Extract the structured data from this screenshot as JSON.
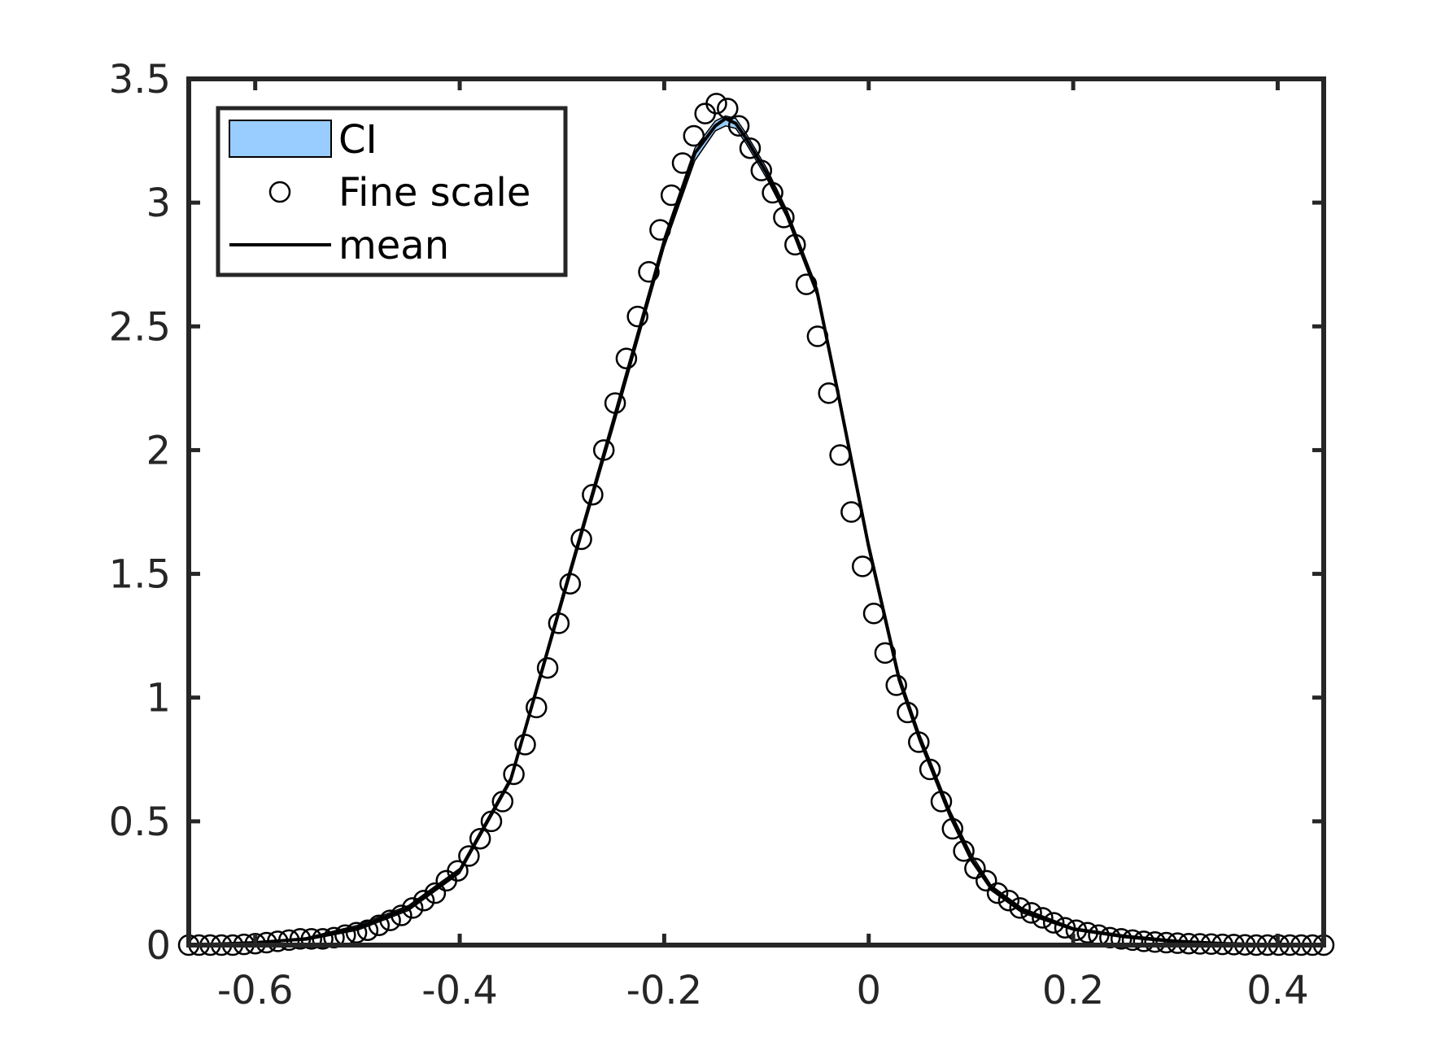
{
  "chart_data": {
    "type": "line",
    "title": "",
    "xlabel": "",
    "ylabel": "",
    "xlim": [
      -0.665,
      0.445
    ],
    "ylim": [
      0,
      3.5
    ],
    "xticks": [
      -0.6,
      -0.4,
      -0.2,
      0,
      0.2,
      0.4
    ],
    "xtick_labels": [
      "-0.6",
      "-0.4",
      "-0.2",
      "0",
      "0.2",
      "0.4"
    ],
    "yticks": [
      0,
      0.5,
      1,
      1.5,
      2,
      2.5,
      3,
      3.5
    ],
    "ytick_labels": [
      "0",
      "0.5",
      "1",
      "1.5",
      "2",
      "2.5",
      "3",
      "3.5"
    ],
    "grid": false,
    "legend": {
      "placement": "top-left",
      "entries": [
        "CI",
        "Fine scale",
        "mean"
      ]
    },
    "colors": {
      "ci_fill": "#99ccff",
      "mean_line": "#000000",
      "markers": "#000000",
      "axes": "#262626"
    },
    "series": [
      {
        "name": "CI",
        "kind": "band",
        "x": [
          -0.665,
          -0.6,
          -0.55,
          -0.5,
          -0.45,
          -0.4,
          -0.35,
          -0.3,
          -0.25,
          -0.2,
          -0.17,
          -0.15,
          -0.14,
          -0.13,
          -0.12,
          -0.1,
          -0.08,
          -0.05,
          -0.03,
          0,
          0.03,
          0.05,
          0.08,
          0.1,
          0.12,
          0.15,
          0.2,
          0.25,
          0.3,
          0.35,
          0.4,
          0.445
        ],
        "lower": [
          0.0,
          0.01,
          0.02,
          0.06,
          0.14,
          0.29,
          0.66,
          1.38,
          2.09,
          2.82,
          3.17,
          3.29,
          3.31,
          3.3,
          3.24,
          3.1,
          2.94,
          2.62,
          2.22,
          1.6,
          1.06,
          0.82,
          0.51,
          0.34,
          0.22,
          0.13,
          0.06,
          0.03,
          0.01,
          0.005,
          0.0,
          0.0
        ],
        "upper": [
          0.0,
          0.01,
          0.03,
          0.08,
          0.16,
          0.31,
          0.68,
          1.41,
          2.13,
          2.86,
          3.22,
          3.33,
          3.35,
          3.34,
          3.28,
          3.14,
          2.97,
          2.65,
          2.25,
          1.63,
          1.09,
          0.85,
          0.54,
          0.37,
          0.24,
          0.15,
          0.07,
          0.04,
          0.02,
          0.008,
          0.002,
          0.0
        ]
      },
      {
        "name": "Fine scale",
        "kind": "scatter",
        "x": [
          -0.665,
          -0.655,
          -0.644,
          -0.633,
          -0.622,
          -0.611,
          -0.6,
          -0.589,
          -0.578,
          -0.567,
          -0.556,
          -0.545,
          -0.534,
          -0.523,
          -0.512,
          -0.501,
          -0.49,
          -0.479,
          -0.468,
          -0.457,
          -0.446,
          -0.435,
          -0.424,
          -0.413,
          -0.402,
          -0.391,
          -0.38,
          -0.369,
          -0.358,
          -0.347,
          -0.336,
          -0.325,
          -0.314,
          -0.303,
          -0.292,
          -0.281,
          -0.27,
          -0.259,
          -0.248,
          -0.237,
          -0.226,
          -0.215,
          -0.204,
          -0.193,
          -0.182,
          -0.171,
          -0.16,
          -0.149,
          -0.138,
          -0.127,
          -0.116,
          -0.105,
          -0.094,
          -0.083,
          -0.072,
          -0.061,
          -0.05,
          -0.039,
          -0.028,
          -0.017,
          -0.006,
          0.005,
          0.016,
          0.027,
          0.038,
          0.049,
          0.06,
          0.071,
          0.082,
          0.093,
          0.104,
          0.115,
          0.126,
          0.137,
          0.148,
          0.159,
          0.17,
          0.181,
          0.192,
          0.203,
          0.214,
          0.225,
          0.236,
          0.247,
          0.258,
          0.269,
          0.28,
          0.291,
          0.302,
          0.313,
          0.324,
          0.335,
          0.346,
          0.357,
          0.368,
          0.379,
          0.39,
          0.401,
          0.412,
          0.423,
          0.434,
          0.445
        ],
        "y": [
          0.0,
          0.0,
          0.0,
          0.0,
          0.0,
          0.003,
          0.006,
          0.01,
          0.015,
          0.02,
          0.025,
          0.025,
          0.025,
          0.03,
          0.04,
          0.05,
          0.06,
          0.08,
          0.1,
          0.12,
          0.15,
          0.18,
          0.21,
          0.26,
          0.3,
          0.36,
          0.43,
          0.5,
          0.58,
          0.69,
          0.81,
          0.96,
          1.12,
          1.3,
          1.46,
          1.64,
          1.82,
          2.0,
          2.19,
          2.37,
          2.54,
          2.72,
          2.89,
          3.03,
          3.16,
          3.27,
          3.36,
          3.4,
          3.38,
          3.31,
          3.22,
          3.13,
          3.04,
          2.94,
          2.83,
          2.67,
          2.46,
          2.23,
          1.98,
          1.75,
          1.53,
          1.34,
          1.18,
          1.05,
          0.94,
          0.82,
          0.71,
          0.58,
          0.47,
          0.38,
          0.31,
          0.26,
          0.21,
          0.18,
          0.15,
          0.13,
          0.11,
          0.09,
          0.07,
          0.06,
          0.05,
          0.04,
          0.03,
          0.025,
          0.02,
          0.015,
          0.012,
          0.01,
          0.008,
          0.006,
          0.005,
          0.004,
          0.003,
          0.002,
          0.001,
          0.0,
          0.0,
          0.0,
          0.0,
          0.0,
          0.0,
          0.0
        ]
      },
      {
        "name": "mean",
        "kind": "line",
        "x": [
          -0.665,
          -0.6,
          -0.55,
          -0.5,
          -0.45,
          -0.4,
          -0.35,
          -0.3,
          -0.25,
          -0.2,
          -0.17,
          -0.15,
          -0.14,
          -0.13,
          -0.12,
          -0.1,
          -0.08,
          -0.05,
          -0.03,
          0,
          0.03,
          0.05,
          0.08,
          0.1,
          0.12,
          0.15,
          0.2,
          0.25,
          0.3,
          0.35,
          0.4,
          0.445
        ],
        "y": [
          0.0,
          0.01,
          0.025,
          0.07,
          0.15,
          0.3,
          0.67,
          1.39,
          2.11,
          2.84,
          3.2,
          3.31,
          3.34,
          3.32,
          3.26,
          3.12,
          2.95,
          2.63,
          2.23,
          1.61,
          1.07,
          0.83,
          0.52,
          0.35,
          0.23,
          0.14,
          0.065,
          0.035,
          0.015,
          0.006,
          0.001,
          0.0
        ]
      }
    ]
  }
}
